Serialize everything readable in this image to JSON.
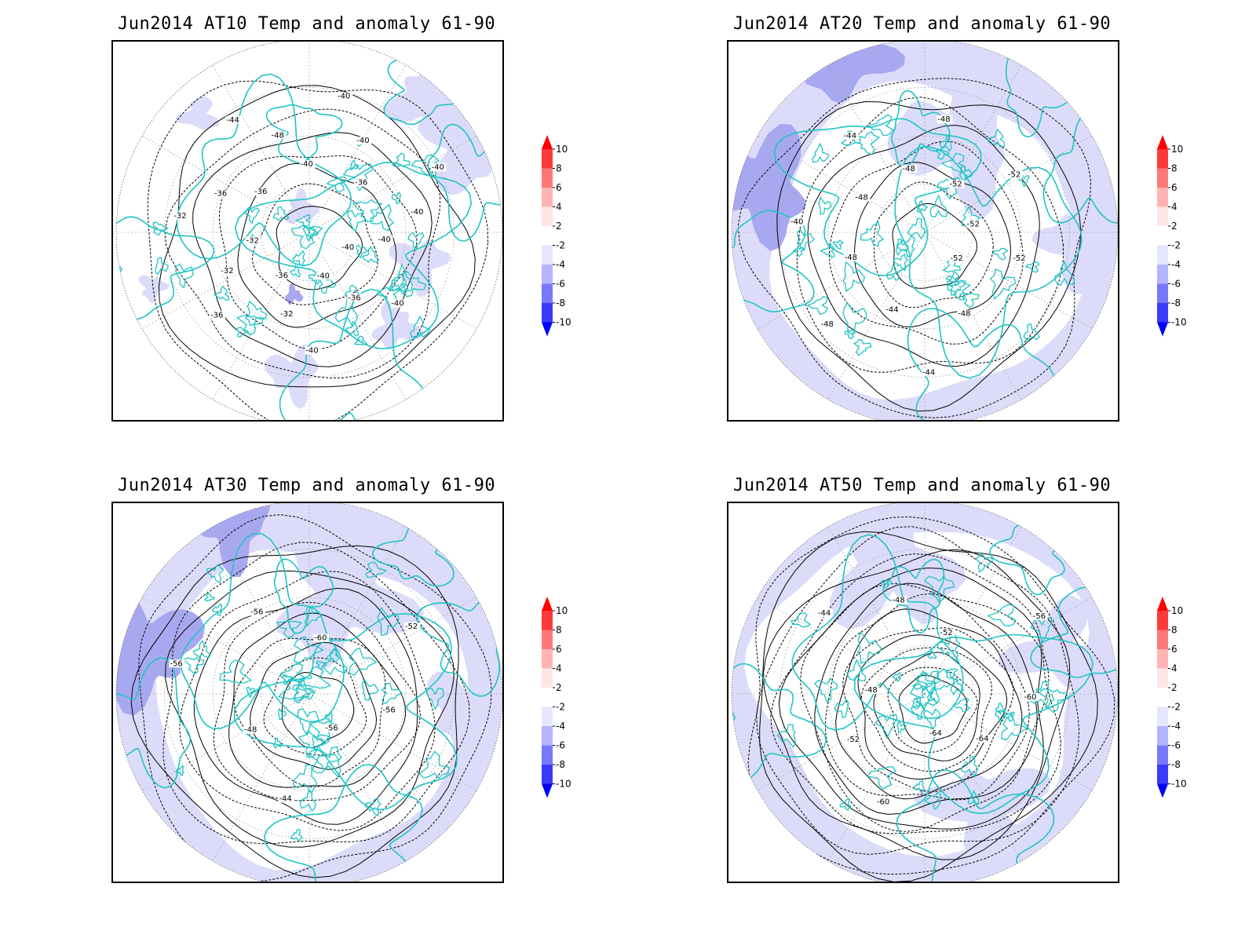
{
  "panels": [
    {
      "id": "at10",
      "title": "Jun2014 AT10 Temp and anomaly 61-90",
      "contour_labels": [
        "-40",
        "-40",
        "-36",
        "-40",
        "-40",
        "-32",
        "-36",
        "-36",
        "-32",
        "-32",
        "-32",
        "-36",
        "-36",
        "-44",
        "-48",
        "-40",
        "-40",
        "-40",
        "-36",
        "-40",
        "-40",
        "-40"
      ],
      "anomaly_pattern": "sparse"
    },
    {
      "id": "at20",
      "title": "Jun2014 AT20 Temp and anomaly 61-90",
      "contour_labels": [
        "-52",
        "-48",
        "-44",
        "-44",
        "-48",
        "-48",
        "-40",
        "-48",
        "-44",
        "-48",
        "-48",
        "-52",
        "-52",
        "-52",
        "-52"
      ],
      "anomaly_pattern": "ring"
    },
    {
      "id": "at30",
      "title": "Jun2014 AT30 Temp and anomaly 61-90",
      "contour_labels": [
        "-56",
        "-44",
        "-48",
        "-56",
        "-56",
        "-60",
        "-52",
        "-56"
      ],
      "anomaly_pattern": "ring"
    },
    {
      "id": "at50",
      "title": "Jun2014 AT50 Temp and anomaly 61-90",
      "contour_labels": [
        "-64",
        "-60",
        "-52",
        "-48",
        "-44",
        "-48",
        "-52",
        "-56",
        "-60",
        "-64"
      ],
      "anomaly_pattern": "mixed"
    }
  ],
  "colorbar": {
    "labels": [
      "10",
      "8",
      "6",
      "4",
      "2",
      "-2",
      "-4",
      "-6",
      "-8",
      "-10"
    ],
    "colors": [
      "#ff0000",
      "#ff3a3a",
      "#ff7878",
      "#ffb4b4",
      "#ffe6e6",
      "#ffffff",
      "#e6e6ff",
      "#b4b4ff",
      "#7878ff",
      "#3a3aff",
      "#0000ff"
    ]
  },
  "styles": {
    "coast_color": "#20c4c4",
    "contour_color": "#000000",
    "grid_color": "#999999",
    "anomaly_light": "#dcdcfa",
    "anomaly_medium": "#a8a8f0"
  }
}
